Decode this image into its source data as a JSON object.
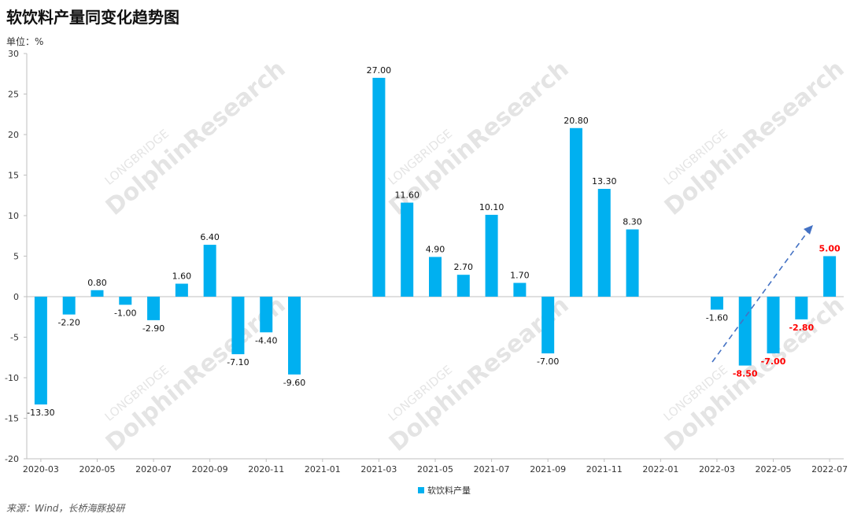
{
  "title": "软饮料产量同变化趋势图",
  "unit_label": "单位：%",
  "source": "来源：Wind，长桥海豚投研",
  "watermark": {
    "line1": "LONGBRIDGE",
    "line2": "DolphinResearch"
  },
  "colors": {
    "bar": "#00B0F0",
    "highlight": "#FF0000",
    "arrow": "#4472C4",
    "axis": "#BFBFBF"
  },
  "chart_data": {
    "type": "bar",
    "categories": [
      "2020-03",
      "2020-04",
      "2020-05",
      "2020-06",
      "2020-07",
      "2020-08",
      "2020-09",
      "2020-10",
      "2020-11",
      "2020-12",
      "2021-01",
      "2021-02",
      "2021-03",
      "2021-04",
      "2021-05",
      "2021-06",
      "2021-07",
      "2021-08",
      "2021-09",
      "2021-10",
      "2021-11",
      "2021-12",
      "2022-01",
      "2022-02",
      "2022-03",
      "2022-04",
      "2022-05",
      "2022-06",
      "2022-07"
    ],
    "tick_labels": [
      "2020-03",
      "2020-05",
      "2020-07",
      "2020-09",
      "2020-11",
      "2021-01",
      "2021-03",
      "2021-05",
      "2021-07",
      "2021-09",
      "2021-11",
      "2022-01",
      "2022-03",
      "2022-05",
      "2022-07"
    ],
    "series": [
      {
        "name": "软饮料产量",
        "values": [
          -13.3,
          -2.2,
          0.8,
          -1.0,
          -2.9,
          1.6,
          6.4,
          -7.1,
          -4.4,
          -9.6,
          null,
          null,
          27.0,
          11.6,
          4.9,
          2.7,
          10.1,
          1.7,
          -7.0,
          20.8,
          13.3,
          8.3,
          null,
          null,
          -1.6,
          -8.5,
          -7.0,
          -2.8,
          5.0
        ],
        "labels": [
          "-13.30",
          "-2.20",
          "0.80",
          "-1.00",
          "-2.90",
          "1.60",
          "6.40",
          "-7.10",
          "-4.40",
          "-9.60",
          "",
          "",
          "27.00",
          "11.60",
          "4.90",
          "2.70",
          "10.10",
          "1.70",
          "-7.00",
          "20.80",
          "13.30",
          "8.30",
          "",
          "",
          "-1.60",
          "-8.50",
          "-7.00",
          "-2.80",
          "5.00"
        ],
        "highlighted": [
          "2022-04",
          "2022-05",
          "2022-06",
          "2022-07"
        ]
      }
    ],
    "ylim": [
      -20,
      30
    ],
    "yticks": [
      -20,
      -15,
      -10,
      -5,
      0,
      5,
      10,
      15,
      20,
      25,
      30
    ],
    "legend_position": "bottom-center",
    "annotation": "dashed trend arrow pointing up-right over 2022-03 to 2022-07",
    "grid": false
  }
}
